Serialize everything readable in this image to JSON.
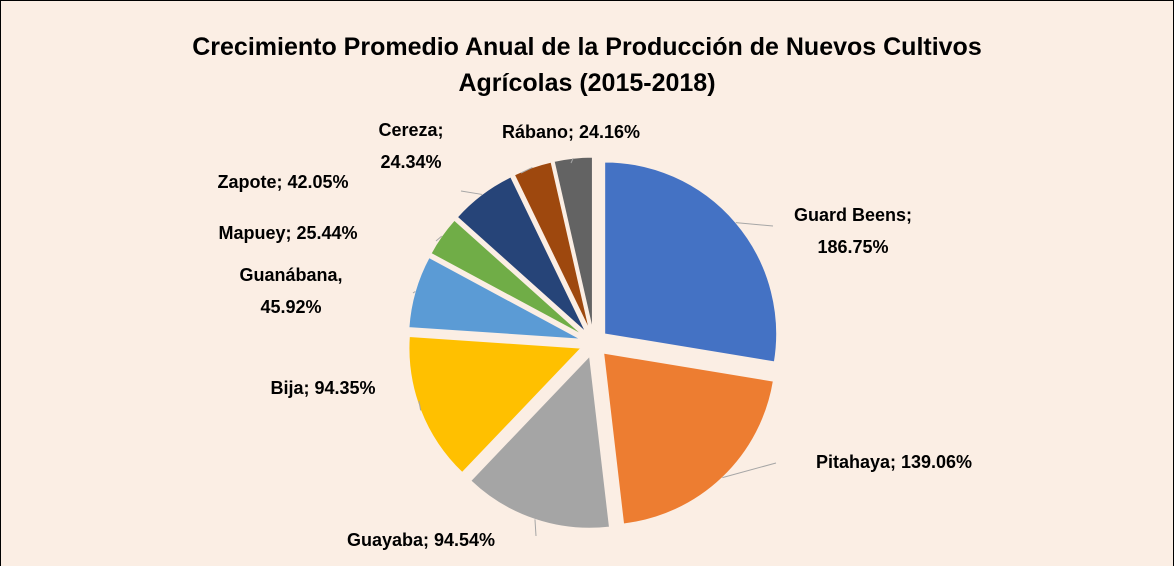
{
  "chart_data": {
    "type": "pie",
    "title": "Crecimiento Promedio Anual de la Producción de Nuevos Cultivos Agrícolas (2015-2018)",
    "values": [
      186.75,
      139.06,
      94.54,
      94.35,
      45.92,
      25.44,
      42.05,
      24.34,
      24.16
    ],
    "value_labels": [
      [
        "Guard Beens;",
        "186.75%"
      ],
      [
        "Pitahaya; 139.06%"
      ],
      [
        "Guayaba; 94.54%"
      ],
      [
        "Bija; 94.35%"
      ],
      [
        "Guanábana,",
        "45.92%"
      ],
      [
        "Mapuey; 25.44%"
      ],
      [
        "Zapote; 42.05%"
      ],
      [
        "Cereza;",
        "24.34%"
      ],
      [
        "Rábano; 24.16%"
      ]
    ],
    "colors": [
      "#4472c4",
      "#ed7d31",
      "#a5a5a5",
      "#ffc000",
      "#5b9bd5",
      "#70ad47",
      "#264478",
      "#9e480e",
      "#636363"
    ]
  }
}
